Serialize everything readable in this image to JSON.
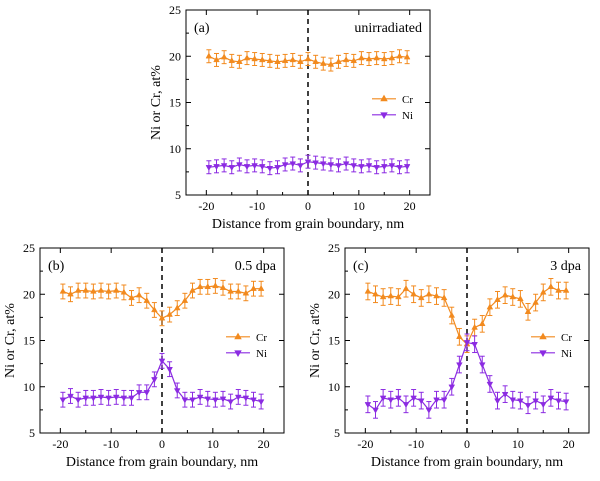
{
  "colors": {
    "cr": "#f28a1e",
    "ni": "#8b2be2",
    "axis": "#000000"
  },
  "chart_data": [
    {
      "type": "line",
      "panel_label": "(a)",
      "annotation": "unirradiated",
      "xlabel": "Distance from grain boundary, nm",
      "ylabel": "Ni or Cr, at%",
      "xlim": [
        -24,
        24
      ],
      "ylim": [
        5,
        25
      ],
      "xticks": [
        -20,
        -10,
        0,
        10,
        20
      ],
      "yticks": [
        5,
        10,
        15,
        20,
        25
      ],
      "x_tick_labels": [
        "-20",
        "-10",
        "0",
        "10",
        "20"
      ],
      "y_tick_labels": [
        "5",
        "10",
        "15",
        "20",
        "25"
      ],
      "grain_boundary_x": 0,
      "legend_position": "right",
      "x": [
        -19.5,
        -18,
        -16.5,
        -15,
        -13.5,
        -12,
        -10.5,
        -9,
        -7.5,
        -6,
        -4.5,
        -3,
        -1.5,
        0,
        1.5,
        3,
        4.5,
        6,
        7.5,
        9,
        10.5,
        12,
        13.5,
        15,
        16.5,
        18,
        19.5
      ],
      "series": [
        {
          "name": "Cr",
          "marker": "triangle-up",
          "values": [
            20.0,
            19.6,
            19.9,
            19.5,
            19.4,
            19.8,
            19.7,
            19.6,
            19.5,
            19.4,
            19.5,
            19.6,
            19.4,
            19.7,
            19.4,
            19.2,
            19.1,
            19.4,
            19.6,
            19.5,
            19.8,
            19.7,
            19.8,
            19.7,
            19.8,
            20.0,
            19.9
          ],
          "errors": [
            0.7,
            0.7,
            0.7,
            0.7,
            0.7,
            0.7,
            0.7,
            0.7,
            0.7,
            0.7,
            0.7,
            0.7,
            0.7,
            0.7,
            0.7,
            0.7,
            0.7,
            0.7,
            0.7,
            0.7,
            0.7,
            0.7,
            0.7,
            0.7,
            0.7,
            0.7,
            0.7
          ]
        },
        {
          "name": "Ni",
          "marker": "triangle-down",
          "values": [
            8.0,
            8.1,
            8.2,
            8.0,
            8.3,
            8.1,
            8.2,
            8.1,
            7.9,
            8.0,
            8.3,
            8.4,
            8.2,
            8.6,
            8.5,
            8.4,
            8.3,
            8.2,
            8.4,
            8.2,
            8.1,
            8.2,
            8.0,
            8.1,
            8.2,
            8.0,
            8.1
          ],
          "errors": [
            0.7,
            0.7,
            0.7,
            0.7,
            0.7,
            0.7,
            0.7,
            0.7,
            0.7,
            0.7,
            0.7,
            0.7,
            0.7,
            0.7,
            0.7,
            0.7,
            0.7,
            0.7,
            0.7,
            0.7,
            0.7,
            0.7,
            0.7,
            0.7,
            0.7,
            0.7,
            0.7
          ]
        }
      ]
    },
    {
      "type": "line",
      "panel_label": "(b)",
      "annotation": "0.5 dpa",
      "xlabel": "Distance from grain boundary, nm",
      "ylabel": "Ni or Cr, at%",
      "xlim": [
        -24,
        24
      ],
      "ylim": [
        5,
        25
      ],
      "xticks": [
        -20,
        -10,
        0,
        10,
        20
      ],
      "yticks": [
        5,
        10,
        15,
        20,
        25
      ],
      "x_tick_labels": [
        "-20",
        "-10",
        "0",
        "10",
        "20"
      ],
      "y_tick_labels": [
        "5",
        "10",
        "15",
        "20",
        "25"
      ],
      "grain_boundary_x": 0,
      "legend_position": "right",
      "x": [
        -19.5,
        -18,
        -16.5,
        -15,
        -13.5,
        -12,
        -10.5,
        -9,
        -7.5,
        -6,
        -4.5,
        -3,
        -1.5,
        0,
        1.5,
        3,
        4.5,
        6,
        7.5,
        9,
        10.5,
        12,
        13.5,
        15,
        16.5,
        18,
        19.5
      ],
      "series": [
        {
          "name": "Cr",
          "marker": "triangle-up",
          "values": [
            20.3,
            20.0,
            20.4,
            20.4,
            20.3,
            20.4,
            20.3,
            20.4,
            20.2,
            19.6,
            19.9,
            19.3,
            18.3,
            17.4,
            17.8,
            18.5,
            19.3,
            20.4,
            20.8,
            20.8,
            20.9,
            20.7,
            20.3,
            20.3,
            20.1,
            20.6,
            20.6
          ],
          "errors": [
            0.8,
            0.8,
            0.8,
            0.8,
            0.8,
            0.8,
            0.8,
            0.8,
            0.8,
            0.8,
            0.8,
            0.8,
            0.8,
            0.8,
            0.8,
            0.8,
            0.8,
            0.8,
            0.8,
            0.8,
            0.8,
            0.8,
            0.8,
            0.8,
            0.8,
            0.8,
            0.8
          ]
        },
        {
          "name": "Ni",
          "marker": "triangle-down",
          "values": [
            8.6,
            9.0,
            8.6,
            8.8,
            8.8,
            8.9,
            8.8,
            8.9,
            8.8,
            8.8,
            9.4,
            9.4,
            10.8,
            12.8,
            11.9,
            9.6,
            8.6,
            8.6,
            8.9,
            8.7,
            8.6,
            8.7,
            8.4,
            8.9,
            8.8,
            8.6,
            8.4
          ],
          "errors": [
            0.8,
            0.8,
            0.8,
            0.8,
            0.8,
            0.8,
            0.8,
            0.8,
            0.8,
            0.8,
            0.8,
            0.8,
            0.8,
            0.8,
            0.8,
            0.8,
            0.8,
            0.8,
            0.8,
            0.8,
            0.8,
            0.8,
            0.8,
            0.8,
            0.8,
            0.8,
            0.8
          ]
        }
      ]
    },
    {
      "type": "line",
      "panel_label": "(c)",
      "annotation": "3 dpa",
      "xlabel": "Distance from grain boundary, nm",
      "ylabel": "Ni or Cr, at%",
      "xlim": [
        -24,
        24
      ],
      "ylim": [
        5,
        25
      ],
      "xticks": [
        -20,
        -10,
        0,
        10,
        20
      ],
      "yticks": [
        5,
        10,
        15,
        20,
        25
      ],
      "x_tick_labels": [
        "-20",
        "-10",
        "0",
        "10",
        "20"
      ],
      "y_tick_labels": [
        "5",
        "10",
        "15",
        "20",
        "25"
      ],
      "grain_boundary_x": 0,
      "legend_position": "right",
      "x": [
        -19.5,
        -18,
        -16.5,
        -15,
        -13.5,
        -12,
        -10.5,
        -9,
        -7.5,
        -6,
        -4.5,
        -3,
        -1.5,
        0,
        1.5,
        3,
        4.5,
        6,
        7.5,
        9,
        10.5,
        12,
        13.5,
        15,
        16.5,
        18,
        19.5
      ],
      "series": [
        {
          "name": "Cr",
          "marker": "triangle-up",
          "values": [
            20.3,
            20.0,
            19.7,
            19.8,
            19.7,
            20.6,
            20.0,
            19.6,
            20.0,
            19.8,
            19.6,
            17.7,
            15.4,
            14.6,
            16.4,
            16.8,
            18.6,
            19.4,
            19.9,
            19.7,
            19.5,
            18.1,
            19.1,
            20.2,
            20.8,
            20.4,
            20.4
          ],
          "errors": [
            0.9,
            0.9,
            0.9,
            0.9,
            0.9,
            0.9,
            0.9,
            0.9,
            0.9,
            0.9,
            0.9,
            0.9,
            0.9,
            0.9,
            0.9,
            0.9,
            0.9,
            0.9,
            0.9,
            0.9,
            0.9,
            0.9,
            0.9,
            0.9,
            0.9,
            0.9,
            0.9
          ]
        },
        {
          "name": "Ni",
          "marker": "triangle-down",
          "values": [
            8.1,
            7.5,
            8.8,
            8.6,
            8.8,
            8.1,
            8.8,
            8.5,
            7.5,
            8.6,
            8.6,
            10.0,
            12.4,
            14.8,
            14.6,
            12.4,
            10.3,
            8.5,
            9.2,
            8.6,
            8.5,
            8.0,
            8.5,
            8.1,
            8.8,
            8.5,
            8.4
          ],
          "errors": [
            0.9,
            0.9,
            0.9,
            0.9,
            0.9,
            0.9,
            0.9,
            0.9,
            0.9,
            0.9,
            0.9,
            0.9,
            0.9,
            0.9,
            0.9,
            0.9,
            0.9,
            0.9,
            0.9,
            0.9,
            0.9,
            0.9,
            0.9,
            0.9,
            0.9,
            0.9,
            0.9
          ]
        }
      ]
    }
  ]
}
